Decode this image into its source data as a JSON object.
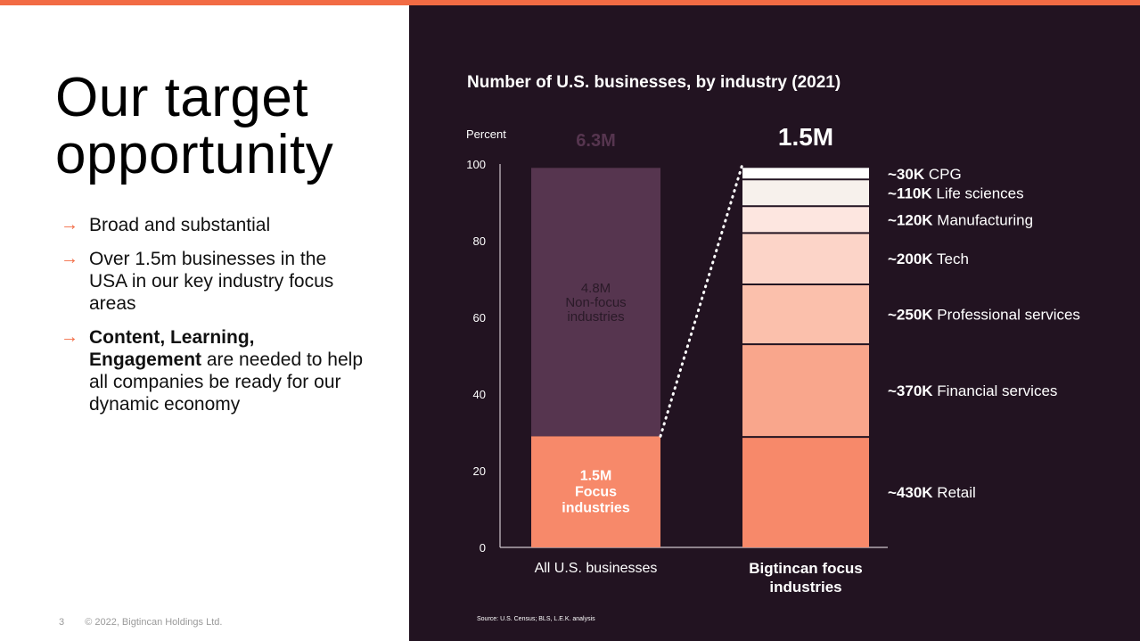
{
  "slide": {
    "title_line1": "Our target",
    "title_line2": "opportunity",
    "bullets": [
      {
        "arrow": "→",
        "bold": "",
        "text": "Broad and substantial"
      },
      {
        "arrow": "→",
        "bold": "",
        "text": "Over 1.5m businesses in the USA in our key industry focus areas"
      },
      {
        "arrow": "→",
        "bold": "Content, Learning, Engagement",
        "text": " are needed to help all companies be ready for our dynamic economy"
      }
    ],
    "page_number": "3",
    "copyright": "© 2022, Bigtincan Holdings Ltd."
  },
  "colors": {
    "accent": "#f26b44",
    "panel_bg": "#221321",
    "non_focus": "#56354f",
    "focus": "#f7896a"
  },
  "chart_data": {
    "type": "bar",
    "stacked": true,
    "title": "Number of U.S. businesses, by industry (2021)",
    "ylabel": "Percent",
    "ylim": [
      0,
      100
    ],
    "yticks": [
      0,
      20,
      40,
      60,
      80,
      100
    ],
    "source": "Source: U.S. Census; BLS, L.E.K. analysis",
    "bars": [
      {
        "category": "All U.S. businesses",
        "total_label": "6.3M",
        "segments": [
          {
            "name": "Focus industries",
            "label_lines": [
              "1.5M",
              "Focus",
              "industries"
            ],
            "value": 29,
            "color": "#f7896a",
            "label_color": "#ffffff"
          },
          {
            "name": "Non-focus industries",
            "label_lines": [
              "4.8M",
              "Non-focus",
              "industries"
            ],
            "value": 70,
            "color": "#56354f",
            "label_color": "#2a1a28"
          }
        ]
      },
      {
        "category_lines": [
          "Bigtincan focus",
          "industries"
        ],
        "total_label": "1.5M",
        "segments": [
          {
            "count": "~430K",
            "name": "Retail",
            "value": 28.8,
            "color": "#f7896a"
          },
          {
            "count": "~370K",
            "name": "Financial services",
            "value": 24.2,
            "color": "#f9a68c"
          },
          {
            "count": "~250K",
            "name": "Professional services",
            "value": 15.6,
            "color": "#fbc0ac"
          },
          {
            "count": "~200K",
            "name": "Tech",
            "value": 13.4,
            "color": "#fcd4c8"
          },
          {
            "count": "~120K",
            "name": "Manufacturing",
            "value": 7.0,
            "color": "#fde6e0"
          },
          {
            "count": "~110K",
            "name": "Life sciences",
            "value": 7.0,
            "color": "#f7f1ec"
          },
          {
            "count": "~30K",
            "name": "CPG",
            "value": 3.0,
            "color": "#ffffff"
          }
        ]
      }
    ]
  }
}
